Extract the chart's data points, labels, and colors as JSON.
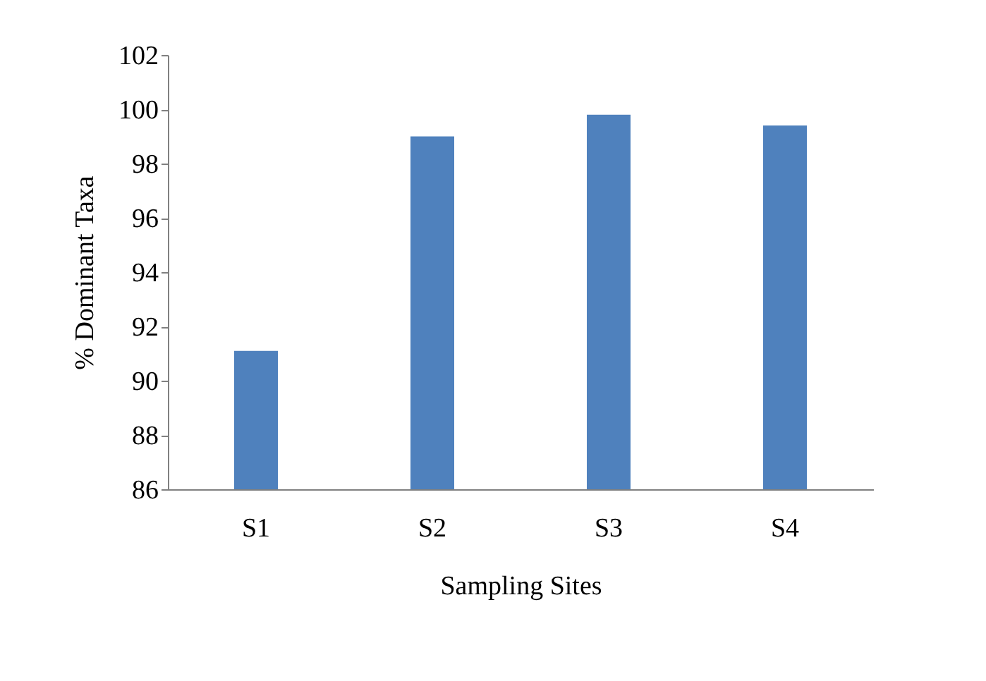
{
  "chart_data": {
    "type": "bar",
    "xlabel": "Sampling Sites",
    "ylabel": "% Dominant Taxa",
    "categories": [
      "S1",
      "S2",
      "S3",
      "S4"
    ],
    "values": [
      91.1,
      99.0,
      99.8,
      99.4
    ],
    "color": "#4f81bd",
    "ylim": [
      86,
      102
    ],
    "yticks": [
      86,
      88,
      90,
      92,
      94,
      96,
      98,
      100,
      102
    ],
    "grid": false
  }
}
